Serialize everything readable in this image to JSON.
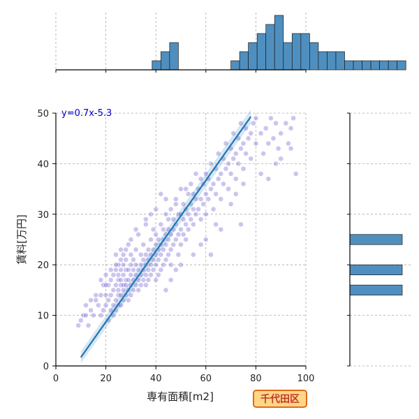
{
  "chart_data": {
    "type": "scatter",
    "title": "",
    "xlabel": "専有面積[m2]",
    "ylabel": "賃料[万円]",
    "xlim": [
      0,
      100
    ],
    "ylim": [
      0,
      50
    ],
    "xticks": [
      "0",
      "20",
      "40",
      "60",
      "80",
      "100"
    ],
    "yticks": [
      "0",
      "10",
      "20",
      "30",
      "40",
      "50"
    ],
    "grid": true,
    "annotation": "y=0.7x-5.3",
    "badge": "千代田区",
    "regression": {
      "slope": 0.7,
      "intercept": -5.3,
      "x_range": [
        10,
        78
      ]
    },
    "colors": {
      "points": "#6a5acd",
      "line": "#1f77b4",
      "hist": "#4f8fbf"
    },
    "scatter_points": [
      [
        9,
        8
      ],
      [
        10,
        9
      ],
      [
        11,
        10
      ],
      [
        12,
        12
      ],
      [
        13,
        8
      ],
      [
        14,
        11
      ],
      [
        15,
        10
      ],
      [
        16,
        13
      ],
      [
        17,
        12
      ],
      [
        18,
        14
      ],
      [
        18,
        10
      ],
      [
        19,
        11
      ],
      [
        19,
        16
      ],
      [
        20,
        12
      ],
      [
        20,
        14
      ],
      [
        20,
        18
      ],
      [
        21,
        9
      ],
      [
        21,
        13
      ],
      [
        21,
        16
      ],
      [
        22,
        11
      ],
      [
        22,
        14
      ],
      [
        22,
        17
      ],
      [
        22,
        19
      ],
      [
        23,
        10
      ],
      [
        23,
        12
      ],
      [
        23,
        15
      ],
      [
        23,
        18
      ],
      [
        24,
        11
      ],
      [
        24,
        13
      ],
      [
        24,
        16
      ],
      [
        24,
        19
      ],
      [
        24,
        22
      ],
      [
        25,
        12
      ],
      [
        25,
        14
      ],
      [
        25,
        15
      ],
      [
        25,
        17
      ],
      [
        25,
        18
      ],
      [
        25,
        20
      ],
      [
        26,
        12
      ],
      [
        26,
        14
      ],
      [
        26,
        16
      ],
      [
        26,
        17
      ],
      [
        26,
        19
      ],
      [
        26,
        21
      ],
      [
        27,
        13
      ],
      [
        27,
        15
      ],
      [
        27,
        16
      ],
      [
        27,
        18
      ],
      [
        27,
        20
      ],
      [
        27,
        22
      ],
      [
        28,
        14
      ],
      [
        28,
        16
      ],
      [
        28,
        17
      ],
      [
        28,
        19
      ],
      [
        28,
        21
      ],
      [
        29,
        13
      ],
      [
        29,
        15
      ],
      [
        29,
        17
      ],
      [
        29,
        19
      ],
      [
        29,
        24
      ],
      [
        30,
        14
      ],
      [
        30,
        16
      ],
      [
        30,
        18
      ],
      [
        30,
        20
      ],
      [
        30,
        22
      ],
      [
        31,
        15
      ],
      [
        31,
        17
      ],
      [
        31,
        19
      ],
      [
        31,
        21
      ],
      [
        32,
        16
      ],
      [
        32,
        18
      ],
      [
        32,
        20
      ],
      [
        32,
        23
      ],
      [
        33,
        15
      ],
      [
        33,
        17
      ],
      [
        33,
        19
      ],
      [
        33,
        26
      ],
      [
        34,
        16
      ],
      [
        34,
        18
      ],
      [
        34,
        20
      ],
      [
        34,
        22
      ],
      [
        35,
        17
      ],
      [
        35,
        19
      ],
      [
        35,
        21
      ],
      [
        35,
        24
      ],
      [
        36,
        16
      ],
      [
        36,
        18
      ],
      [
        36,
        20
      ],
      [
        36,
        22
      ],
      [
        36,
        28
      ],
      [
        37,
        17
      ],
      [
        37,
        19
      ],
      [
        37,
        21
      ],
      [
        37,
        23
      ],
      [
        38,
        18
      ],
      [
        38,
        20
      ],
      [
        38,
        22
      ],
      [
        38,
        25
      ],
      [
        39,
        19
      ],
      [
        39,
        21
      ],
      [
        39,
        23
      ],
      [
        39,
        27
      ],
      [
        40,
        17
      ],
      [
        40,
        20
      ],
      [
        40,
        22
      ],
      [
        40,
        24
      ],
      [
        40,
        26
      ],
      [
        41,
        18
      ],
      [
        41,
        21
      ],
      [
        41,
        23
      ],
      [
        41,
        25
      ],
      [
        42,
        19
      ],
      [
        42,
        22
      ],
      [
        42,
        24
      ],
      [
        42,
        28
      ],
      [
        43,
        20
      ],
      [
        43,
        23
      ],
      [
        43,
        25
      ],
      [
        43,
        27
      ],
      [
        44,
        21
      ],
      [
        44,
        24
      ],
      [
        44,
        26
      ],
      [
        44,
        30
      ],
      [
        45,
        22
      ],
      [
        45,
        25
      ],
      [
        45,
        27
      ],
      [
        45,
        29
      ],
      [
        46,
        20
      ],
      [
        46,
        23
      ],
      [
        46,
        26
      ],
      [
        46,
        31
      ],
      [
        47,
        24
      ],
      [
        47,
        27
      ],
      [
        47,
        29
      ],
      [
        48,
        25
      ],
      [
        48,
        28
      ],
      [
        48,
        33
      ],
      [
        49,
        22
      ],
      [
        49,
        26
      ],
      [
        49,
        30
      ],
      [
        50,
        24
      ],
      [
        50,
        27
      ],
      [
        50,
        30
      ],
      [
        50,
        35
      ],
      [
        51,
        26
      ],
      [
        51,
        29
      ],
      [
        51,
        32
      ],
      [
        52,
        25
      ],
      [
        52,
        28
      ],
      [
        52,
        31
      ],
      [
        53,
        27
      ],
      [
        53,
        30
      ],
      [
        53,
        34
      ],
      [
        54,
        29
      ],
      [
        54,
        32
      ],
      [
        54,
        36
      ],
      [
        55,
        28
      ],
      [
        55,
        31
      ],
      [
        55,
        34
      ],
      [
        56,
        30
      ],
      [
        56,
        33
      ],
      [
        56,
        38
      ],
      [
        57,
        31
      ],
      [
        57,
        35
      ],
      [
        58,
        29
      ],
      [
        58,
        33
      ],
      [
        58,
        37
      ],
      [
        59,
        32
      ],
      [
        59,
        36
      ],
      [
        60,
        30
      ],
      [
        60,
        34
      ],
      [
        60,
        38
      ],
      [
        61,
        33
      ],
      [
        61,
        37
      ],
      [
        62,
        35
      ],
      [
        62,
        40
      ],
      [
        63,
        31
      ],
      [
        63,
        36
      ],
      [
        64,
        34
      ],
      [
        64,
        39
      ],
      [
        65,
        37
      ],
      [
        65,
        42
      ],
      [
        66,
        33
      ],
      [
        66,
        38
      ],
      [
        67,
        36
      ],
      [
        67,
        41
      ],
      [
        68,
        39
      ],
      [
        68,
        44
      ],
      [
        69,
        35
      ],
      [
        69,
        40
      ],
      [
        70,
        38
      ],
      [
        70,
        43
      ],
      [
        71,
        41
      ],
      [
        71,
        46
      ],
      [
        72,
        37
      ],
      [
        72,
        42
      ],
      [
        73,
        40
      ],
      [
        73,
        45
      ],
      [
        74,
        43
      ],
      [
        74,
        48
      ],
      [
        75,
        39
      ],
      [
        75,
        44
      ],
      [
        76,
        42
      ],
      [
        76,
        47
      ],
      [
        77,
        45
      ],
      [
        78,
        41
      ],
      [
        78,
        46
      ],
      [
        79,
        48
      ],
      [
        80,
        44
      ],
      [
        80,
        49
      ],
      [
        82,
        46
      ],
      [
        83,
        42
      ],
      [
        84,
        47
      ],
      [
        85,
        44
      ],
      [
        86,
        49
      ],
      [
        87,
        45
      ],
      [
        88,
        48
      ],
      [
        89,
        43
      ],
      [
        90,
        46
      ],
      [
        92,
        48
      ],
      [
        93,
        44
      ],
      [
        94,
        47
      ],
      [
        95,
        49
      ],
      [
        96,
        38
      ],
      [
        60,
        25
      ],
      [
        62,
        22
      ],
      [
        66,
        27
      ],
      [
        70,
        32
      ],
      [
        74,
        28
      ],
      [
        55,
        22
      ],
      [
        58,
        24
      ],
      [
        64,
        28
      ],
      [
        50,
        20
      ],
      [
        48,
        19
      ],
      [
        46,
        17
      ],
      [
        44,
        15
      ],
      [
        72,
        34
      ],
      [
        75,
        36
      ],
      [
        82,
        38
      ],
      [
        85,
        37
      ],
      [
        88,
        40
      ],
      [
        90,
        41
      ],
      [
        94,
        43
      ],
      [
        52,
        35
      ],
      [
        48,
        32
      ],
      [
        44,
        33
      ],
      [
        40,
        31
      ],
      [
        36,
        29
      ],
      [
        32,
        27
      ],
      [
        28,
        23
      ],
      [
        24,
        20
      ],
      [
        20,
        16
      ],
      [
        18,
        17
      ],
      [
        16,
        14
      ],
      [
        14,
        13
      ],
      [
        12,
        10
      ],
      [
        30,
        25
      ],
      [
        26,
        23
      ],
      [
        38,
        30
      ],
      [
        42,
        34
      ]
    ],
    "x_hist": {
      "bin_start": 0,
      "bin_width": 3.5,
      "counts": [
        0,
        0,
        0,
        0,
        0,
        0,
        0,
        0,
        0,
        0,
        0,
        1,
        2,
        3,
        0,
        0,
        0,
        0,
        0,
        0,
        1,
        2,
        3,
        4,
        5,
        6,
        3,
        4,
        4,
        3,
        2,
        2,
        2,
        1,
        1,
        1,
        1,
        1,
        1,
        1
      ]
    },
    "y_hist": {
      "bin_start": 0,
      "bin_width": 2,
      "counts": [
        0,
        0,
        0,
        0,
        0,
        0,
        0,
        1,
        0,
        1,
        0,
        0,
        1,
        0,
        0,
        0,
        0,
        0,
        0,
        0,
        0,
        0,
        0,
        0,
        0
      ]
    }
  }
}
